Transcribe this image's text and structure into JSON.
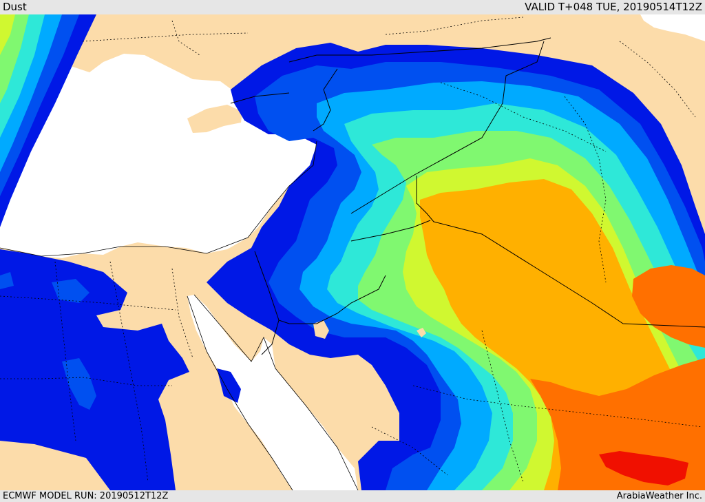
{
  "header": {
    "title": "Dust",
    "valid_time": "VALID T+048 TUE, 20190514T12Z"
  },
  "footer": {
    "model_run": "ECMWF MODEL RUN: 20190512T12Z",
    "credit": "ArabiaWeather Inc."
  },
  "map": {
    "colors": {
      "land": "#fcdcaa",
      "sea": "#ffffff",
      "level_1": "#0018e6",
      "level_2": "#0050f0",
      "level_3": "#00aaff",
      "level_4": "#2ee8d8",
      "level_5": "#80f870",
      "level_6": "#d0f830",
      "level_7": "#ffb000",
      "level_8": "#ff7000",
      "level_9": "#f01000",
      "border": "#000000"
    }
  }
}
